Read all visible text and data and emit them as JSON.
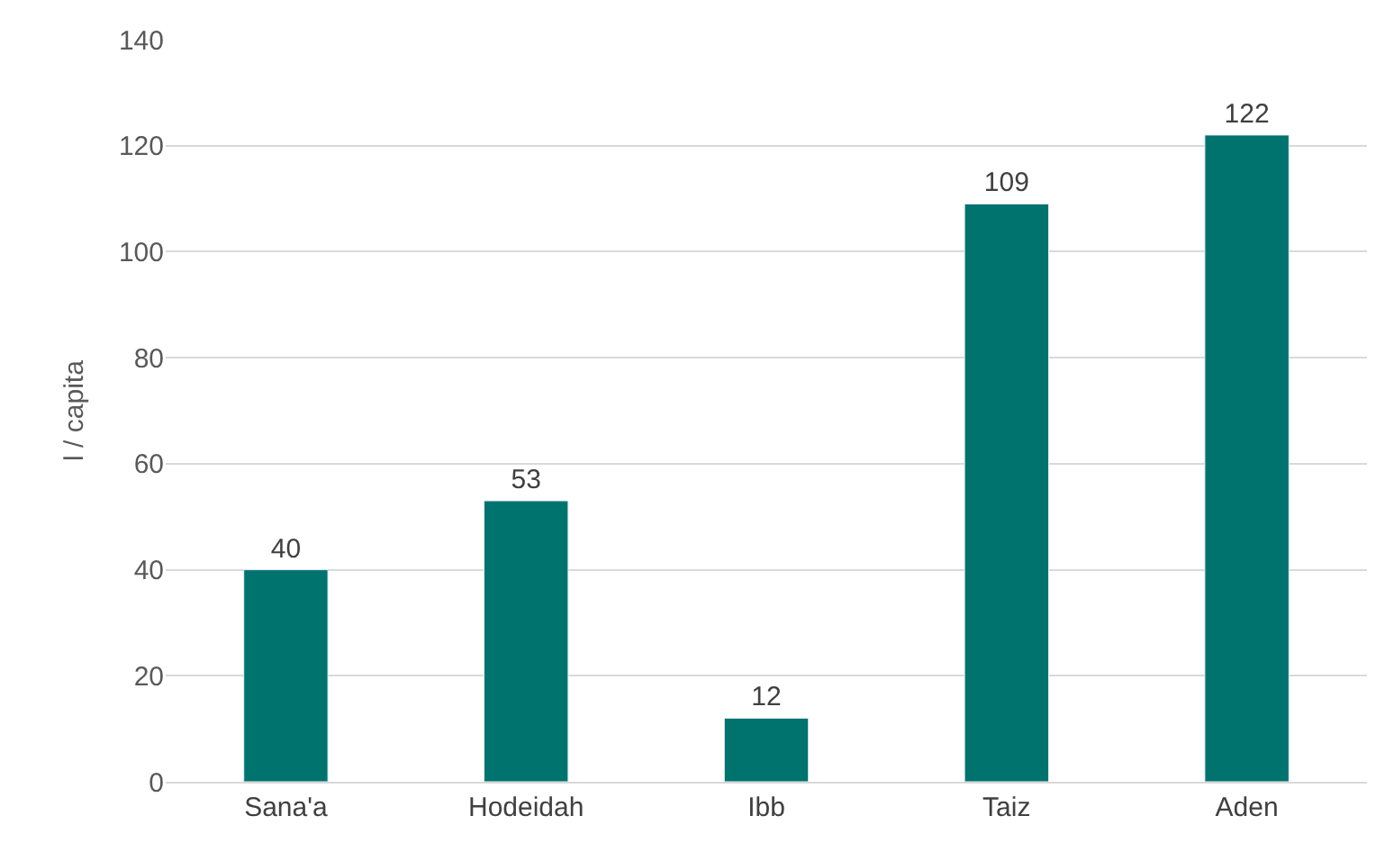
{
  "chart_data": {
    "type": "bar",
    "ylabel": "l / capita",
    "categories": [
      "Sana'a",
      "Hodeidah",
      "Ibb",
      "Taiz",
      "Aden"
    ],
    "values": [
      40,
      53,
      12,
      109,
      122
    ],
    "color": "#00736f",
    "ylim": [
      0,
      140
    ],
    "yticks": [
      0,
      20,
      40,
      60,
      80,
      100,
      120,
      140
    ],
    "grid": "y",
    "data_labels": true,
    "legend": false
  }
}
